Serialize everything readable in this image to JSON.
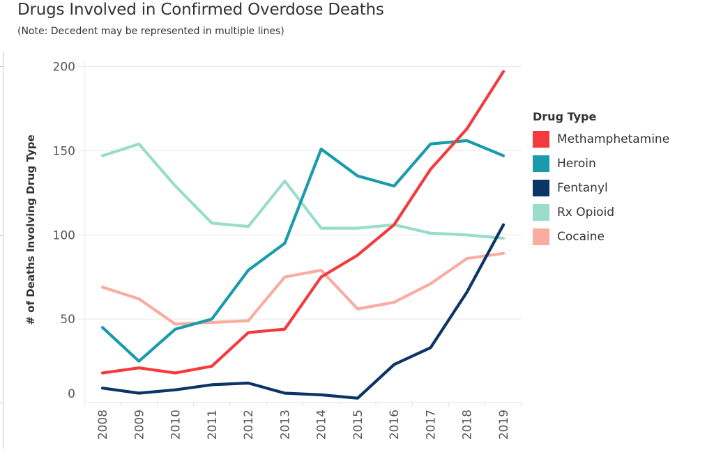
{
  "header": {
    "title": "Drugs Involved in Confirmed Overdose Deaths",
    "subtitle": "(Note: Decedent may be represented in multiple lines)"
  },
  "chart_data": {
    "type": "line",
    "title": "Drugs Involved in Confirmed Overdose Deaths",
    "subtitle": "(Note: Decedent may be represented in multiple lines)",
    "xlabel": "",
    "ylabel": "# of Deaths Involving Drug Type",
    "x": [
      "2008",
      "2009",
      "2010",
      "2011",
      "2012",
      "2013",
      "2014",
      "2015",
      "2016",
      "2017",
      "2018",
      "2019"
    ],
    "yticks": [
      0,
      50,
      100,
      150,
      200
    ],
    "ylim": [
      0,
      200
    ],
    "grid": true,
    "legend_title": "Drug Type",
    "legend_position": "right",
    "series": [
      {
        "name": "Methamphetamine",
        "color": "#f53a3d",
        "values": [
          18,
          21,
          18,
          22,
          42,
          44,
          75,
          88,
          106,
          139,
          163,
          197
        ]
      },
      {
        "name": "Heroin",
        "color": "#1a9bab",
        "values": [
          45,
          25,
          44,
          50,
          79,
          95,
          151,
          135,
          129,
          154,
          156,
          147
        ]
      },
      {
        "name": "Fentanyl",
        "color": "#0b3566",
        "values": [
          9,
          6,
          8,
          11,
          12,
          6,
          5,
          3,
          23,
          33,
          66,
          106
        ]
      },
      {
        "name": "Rx Opioid",
        "color": "#9adccc",
        "values": [
          147,
          154,
          129,
          107,
          105,
          132,
          104,
          104,
          106,
          101,
          100,
          98
        ]
      },
      {
        "name": "Cocaine",
        "color": "#f9ada0",
        "values": [
          69,
          62,
          47,
          48,
          49,
          75,
          79,
          56,
          60,
          71,
          86,
          89
        ]
      }
    ]
  }
}
